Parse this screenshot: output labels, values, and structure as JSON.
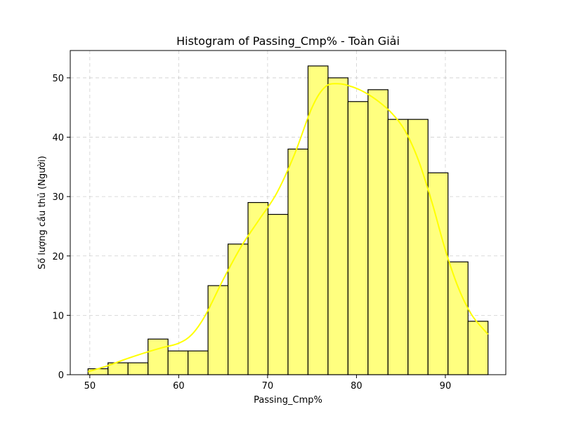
{
  "chart_data": {
    "type": "bar",
    "title": "Histogram of Passing_Cmp% - Toàn Giải",
    "xlabel": "Passing_Cmp%",
    "ylabel": "Số lượng cầu thủ (Người)",
    "bin_start": 49.8,
    "bin_width": 2.25,
    "counts": [
      1,
      2,
      2,
      6,
      4,
      4,
      15,
      22,
      29,
      27,
      38,
      52,
      50,
      46,
      48,
      43,
      43,
      34,
      19,
      9
    ],
    "kde": {
      "x": [
        49.8,
        52,
        54,
        56,
        58,
        60,
        61.5,
        63,
        65,
        67,
        69,
        71,
        73,
        75,
        76.5,
        78,
        79.5,
        81,
        82.5,
        84,
        85.5,
        87,
        88.5,
        90,
        91.5,
        93,
        94.8
      ],
      "y": [
        0.5,
        1.5,
        2.6,
        3.6,
        4.5,
        5.3,
        6.8,
        10.0,
        16.0,
        21.5,
        26.0,
        30.5,
        37.0,
        45.0,
        48.5,
        49.0,
        48.5,
        47.5,
        46.0,
        44.0,
        41.0,
        36.0,
        29.0,
        21.0,
        14.5,
        10.0,
        6.8
      ]
    },
    "xlim": [
      47.8,
      96.8
    ],
    "ylim": [
      0,
      54.6
    ],
    "xticks": [
      50,
      60,
      70,
      80,
      90
    ],
    "yticks": [
      0,
      10,
      20,
      30,
      40,
      50
    ],
    "bar_color": "#ffff7f",
    "line_color": "#ffff00",
    "grid": true
  }
}
